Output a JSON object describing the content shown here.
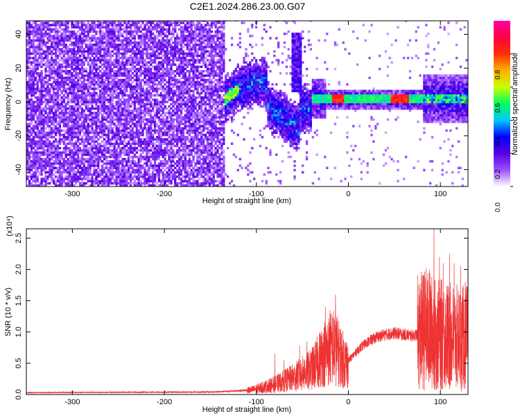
{
  "title": "C2E1.2024.286.23.00.G07",
  "chart_data": [
    {
      "type": "heatmap",
      "xlabel": "Height of straight line (km)",
      "ylabel": "Frequency (Hz)",
      "xlim": [
        -350,
        130
      ],
      "ylim": [
        -50,
        48
      ],
      "xticks": [
        -300,
        -200,
        -100,
        0,
        100
      ],
      "yticks": [
        -40,
        -20,
        0,
        20,
        40
      ],
      "colorbar": {
        "label": "Normalized spectral amplitude",
        "range": [
          0,
          1
        ],
        "ticks": [
          "0.0",
          "0.2",
          "0.4",
          "0.6",
          "0.8"
        ],
        "colors": [
          "#ffffff",
          "#9a50ff",
          "#5a00e0",
          "#0000ff",
          "#00c8ff",
          "#00ff60",
          "#c8ff00",
          "#ffb000",
          "#ff3000",
          "#ff0040",
          "#ff00a0"
        ]
      },
      "features": {
        "noise_region_x": [
          -350,
          -130
        ],
        "carrier_center_hz": 1,
        "carrier_peak_amplitude": 0.85,
        "carrier_peak_x": [
          -20,
          -5,
          45,
          65
        ]
      }
    },
    {
      "type": "line",
      "xlabel": "Height of straight line (km)",
      "ylabel": "SNR (10 * v/v)",
      "exponent_label": "(x10⁴)",
      "xlim": [
        -350,
        130
      ],
      "ylim": [
        0,
        2.65
      ],
      "xticks": [
        -300,
        -200,
        -100,
        0,
        100
      ],
      "yticks": [
        "0.0",
        "0.5",
        "1.0",
        "1.5",
        "2.0",
        "2.5"
      ],
      "series": [
        {
          "color": "#ee3333",
          "envelope_x": [
            -350,
            -150,
            -130,
            -110,
            -100,
            -80,
            -60,
            -40,
            -25,
            -15,
            -5,
            0,
            10,
            20,
            30,
            40,
            50,
            60,
            70,
            75,
            80,
            85,
            90,
            95,
            100,
            110,
            120,
            130
          ],
          "envelope_y": [
            0.03,
            0.04,
            0.05,
            0.07,
            0.1,
            0.18,
            0.3,
            0.45,
            0.75,
            0.85,
            0.6,
            0.55,
            0.72,
            0.85,
            0.93,
            0.98,
            1.0,
            0.98,
            0.96,
            0.98,
            1.02,
            1.05,
            1.0,
            0.95,
            0.95,
            0.92,
            0.9,
            0.9
          ],
          "spikes": [
            {
              "x": -80,
              "y": 0.65
            },
            {
              "x": -70,
              "y": 0.55
            },
            {
              "x": -53,
              "y": 0.78
            },
            {
              "x": -45,
              "y": 0.85
            },
            {
              "x": -25,
              "y": 1.4
            },
            {
              "x": -20,
              "y": 1.35
            },
            {
              "x": -14,
              "y": 1.6
            },
            {
              "x": 85,
              "y": 1.3
            },
            {
              "x": 88,
              "y": 2.0
            },
            {
              "x": 93,
              "y": 2.65
            },
            {
              "x": 99,
              "y": 2.2
            },
            {
              "x": 103,
              "y": 2.1
            },
            {
              "x": 110,
              "y": 2.25
            },
            {
              "x": 115,
              "y": 2.1
            },
            {
              "x": 122,
              "y": 2.05
            },
            {
              "x": 127,
              "y": 1.8
            }
          ]
        }
      ]
    }
  ]
}
